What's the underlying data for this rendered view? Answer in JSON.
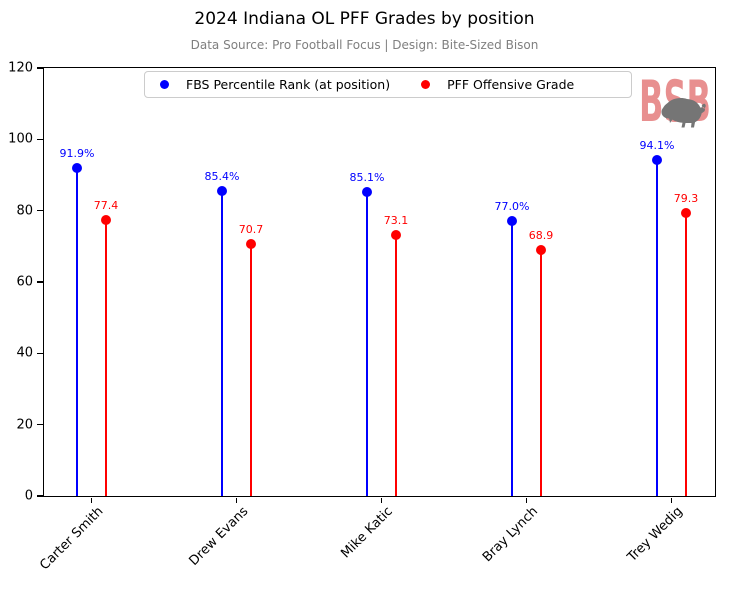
{
  "header": {
    "title": "2024 Indiana OL PFF Grades by position",
    "subtitle": "Data Source: Pro Football Focus | Design: Bite-Sized Bison"
  },
  "legend": {
    "items": [
      {
        "label": "FBS Percentile Rank (at position)",
        "color": "#0000ff"
      },
      {
        "label": "PFF Offensive Grade",
        "color": "#ff0000"
      }
    ]
  },
  "logo": {
    "text": "BSB",
    "text_color": "#e88f8f",
    "bison_icon_color": "#757575"
  },
  "chart_data": {
    "type": "lollipop",
    "title": "2024 Indiana OL PFF Grades by position",
    "subtitle": "Data Source: Pro Football Focus | Design: Bite-Sized Bison",
    "categories": [
      "Carter Smith",
      "Drew Evans",
      "Mike Katic",
      "Bray Lynch",
      "Trey Wedig"
    ],
    "series": [
      {
        "name": "FBS Percentile Rank (at position)",
        "color": "#0000ff",
        "values": [
          91.9,
          85.4,
          85.1,
          77.0,
          94.1
        ],
        "labels": [
          "91.9%",
          "85.4%",
          "85.1%",
          "77.0%",
          "94.1%"
        ]
      },
      {
        "name": "PFF Offensive Grade",
        "color": "#ff0000",
        "values": [
          77.4,
          70.7,
          73.1,
          68.9,
          79.3
        ],
        "labels": [
          "77.4",
          "70.7",
          "73.1",
          "68.9",
          "79.3"
        ]
      }
    ],
    "xlabel": "",
    "ylabel": "",
    "ylim": [
      0,
      120
    ],
    "yticks": [
      0,
      20,
      40,
      60,
      80,
      100,
      120
    ],
    "grid": false,
    "legend_position": "top-center"
  }
}
